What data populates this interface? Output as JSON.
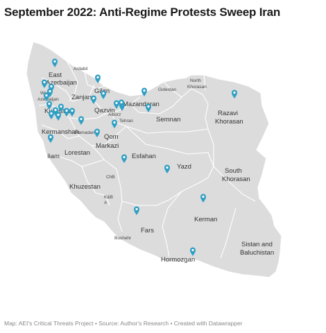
{
  "title": "September 2022: Anti-Regime Protests Sweep Iran",
  "source": "Map: AEI's Critical Threats Project • Source: Author's Research • Created with Datawrapper",
  "colors": {
    "land": "#dcdcdc",
    "border": "#ffffff",
    "pin": "#2f9fc4",
    "text": "#333333"
  },
  "provinces": {
    "west_azerbaijan": "West\nAzerbaijan",
    "east_azerbaijan": "East\nAzerbaijan",
    "ardabil": "Ardabil",
    "zanjan": "Zanjan",
    "gilan": "Gilan",
    "kurdistan": "Kurdistan",
    "qazvin": "Qazvin",
    "alborz": "Alborz",
    "tehran": "Tehran",
    "mazandaran": "Mazandaran",
    "golestan": "Golestan",
    "north_khorasan": "North\nKhorasan",
    "razavi_khorasan": "Razavi\nKhorasan",
    "semnan": "Semnan",
    "kermanshah": "Kermanshah",
    "hamadan": "Hamadan",
    "markazi": "Markazi",
    "qom": "Qom",
    "ilam": "Ilam",
    "lorestan": "Lorestan",
    "esfahan": "Esfahan",
    "yazd": "Yazd",
    "south_khorasan": "South\nKhorasan",
    "khuzestan": "Khuzestan",
    "chb": "ChB",
    "kbba": "K&B\nA",
    "kerman": "Kerman",
    "fars": "Fars",
    "bushehr": "Bushehr",
    "sistan": "Sistan and\nBaluchistan",
    "hormozgan": "Hormozgan"
  },
  "protest_locations": [
    "East Azerbaijan",
    "West Azerbaijan",
    "West Azerbaijan",
    "West Azerbaijan",
    "West Azerbaijan",
    "Kurdistan",
    "Kurdistan",
    "Kurdistan",
    "Kurdistan",
    "Kermanshah",
    "Kermanshah",
    "Kermanshah",
    "Hamadan",
    "Ilam",
    "Gilan",
    "Gilan",
    "Zanjan",
    "Qazvin",
    "Alborz",
    "Tehran",
    "Qom",
    "Markazi",
    "Mazandaran",
    "Semnan",
    "Razavi Khorasan",
    "Esfahan",
    "Yazd",
    "Kerman",
    "Fars",
    "Hormozgan"
  ]
}
